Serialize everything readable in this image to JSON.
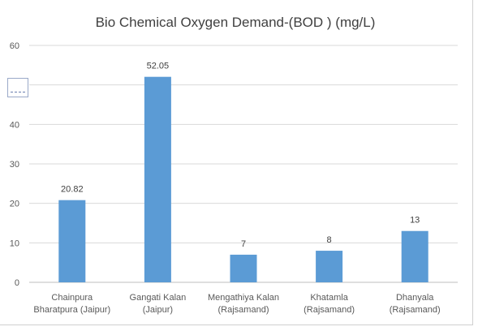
{
  "chart_data": {
    "type": "bar",
    "title": "Bio Chemical Oxygen Demand-(BOD ) (mg/L)",
    "categories": [
      [
        "Chainpura",
        "Bharatpura (Jaipur)"
      ],
      [
        "Gangati Kalan",
        "(Jaipur)"
      ],
      [
        "Mengathiya Kalan",
        "(Rajsamand)"
      ],
      [
        "Khatamla",
        "(Rajsamand)"
      ],
      [
        "Dhanyala",
        "(Rajsamand)"
      ]
    ],
    "values": [
      20.82,
      52.05,
      7,
      8,
      13
    ],
    "data_labels": [
      "20.82",
      "52.05",
      "7",
      "8",
      "13"
    ],
    "yticks": [
      "0",
      "10",
      "20",
      "30",
      "40",
      "50",
      "60"
    ],
    "ylim": [
      0,
      60
    ],
    "grid": true,
    "legend": "none",
    "bar_color": "#5b9bd5"
  }
}
